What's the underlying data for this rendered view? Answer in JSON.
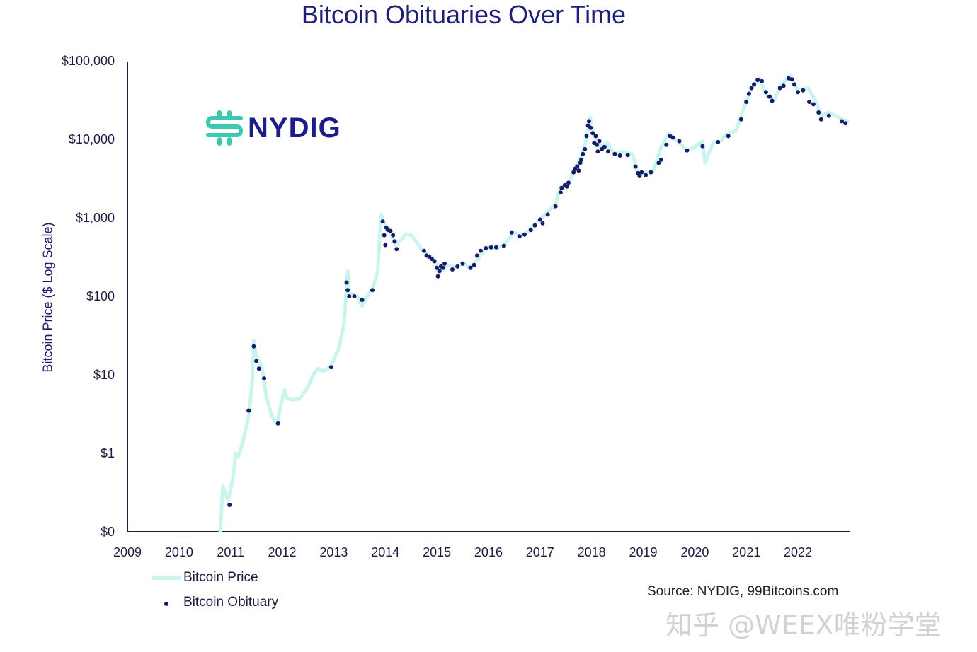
{
  "chart_data": {
    "type": "line+scatter",
    "title": "Bitcoin Obituaries Over Time",
    "xlabel": "",
    "ylabel": "Bitcoin Price ($ Log Scale)",
    "yscale": "log",
    "ylim": [
      0.1,
      100000
    ],
    "xlim": [
      2009,
      2023
    ],
    "y_ticks": [
      {
        "value": 0.1,
        "label": "$0"
      },
      {
        "value": 1,
        "label": "$1"
      },
      {
        "value": 10,
        "label": "$10"
      },
      {
        "value": 100,
        "label": "$100"
      },
      {
        "value": 1000,
        "label": "$1,000"
      },
      {
        "value": 10000,
        "label": "$10,000"
      },
      {
        "value": 100000,
        "label": "$100,000"
      }
    ],
    "x_ticks": [
      "2009",
      "2010",
      "2011",
      "2012",
      "2013",
      "2014",
      "2015",
      "2016",
      "2017",
      "2018",
      "2019",
      "2020",
      "2021",
      "2022"
    ],
    "grid": false,
    "legend": {
      "placement": "bottom-left",
      "entries": [
        "Bitcoin Price",
        "Bitcoin Obituary"
      ]
    },
    "colors": {
      "price": "#c9f5ef",
      "obituary": "#1a1a6b",
      "title": "#1f1f78"
    },
    "series": [
      {
        "name": "Bitcoin Price",
        "type": "line",
        "points": [
          [
            2010.8,
            0.1
          ],
          [
            2010.85,
            0.38
          ],
          [
            2010.95,
            0.25
          ],
          [
            2011.05,
            0.5
          ],
          [
            2011.1,
            1
          ],
          [
            2011.15,
            0.9
          ],
          [
            2011.25,
            1.5
          ],
          [
            2011.35,
            3
          ],
          [
            2011.42,
            8
          ],
          [
            2011.45,
            27
          ],
          [
            2011.5,
            17
          ],
          [
            2011.6,
            13
          ],
          [
            2011.7,
            5
          ],
          [
            2011.8,
            3
          ],
          [
            2011.9,
            2.3
          ],
          [
            2011.97,
            4
          ],
          [
            2012.05,
            6.5
          ],
          [
            2012.1,
            5
          ],
          [
            2012.2,
            4.8
          ],
          [
            2012.35,
            5
          ],
          [
            2012.5,
            7
          ],
          [
            2012.6,
            10
          ],
          [
            2012.7,
            12
          ],
          [
            2012.8,
            11
          ],
          [
            2012.95,
            13
          ],
          [
            2013.1,
            22
          ],
          [
            2013.2,
            45
          ],
          [
            2013.27,
            210
          ],
          [
            2013.3,
            110
          ],
          [
            2013.45,
            100
          ],
          [
            2013.55,
            75
          ],
          [
            2013.65,
            100
          ],
          [
            2013.75,
            125
          ],
          [
            2013.85,
            200
          ],
          [
            2013.92,
            1100
          ],
          [
            2014.0,
            800
          ],
          [
            2014.1,
            650
          ],
          [
            2014.2,
            450
          ],
          [
            2014.3,
            520
          ],
          [
            2014.4,
            620
          ],
          [
            2014.5,
            600
          ],
          [
            2014.6,
            500
          ],
          [
            2014.7,
            400
          ],
          [
            2014.8,
            350
          ],
          [
            2014.95,
            300
          ],
          [
            2015.05,
            200
          ],
          [
            2015.2,
            250
          ],
          [
            2015.4,
            230
          ],
          [
            2015.5,
            270
          ],
          [
            2015.65,
            230
          ],
          [
            2015.8,
            300
          ],
          [
            2015.95,
            420
          ],
          [
            2016.1,
            400
          ],
          [
            2016.3,
            450
          ],
          [
            2016.5,
            650
          ],
          [
            2016.6,
            600
          ],
          [
            2016.75,
            650
          ],
          [
            2016.95,
            900
          ],
          [
            2017.1,
            1100
          ],
          [
            2017.3,
            1500
          ],
          [
            2017.4,
            2500
          ],
          [
            2017.55,
            2600
          ],
          [
            2017.65,
            4000
          ],
          [
            2017.8,
            6000
          ],
          [
            2017.9,
            10000
          ],
          [
            2017.97,
            19000
          ],
          [
            2018.05,
            11000
          ],
          [
            2018.15,
            8000
          ],
          [
            2018.3,
            9000
          ],
          [
            2018.45,
            6500
          ],
          [
            2018.6,
            7000
          ],
          [
            2018.8,
            6400
          ],
          [
            2018.9,
            3500
          ],
          [
            2019.0,
            3700
          ],
          [
            2019.2,
            4000
          ],
          [
            2019.35,
            8000
          ],
          [
            2019.5,
            12000
          ],
          [
            2019.7,
            9000
          ],
          [
            2019.85,
            7200
          ],
          [
            2020.0,
            8000
          ],
          [
            2020.15,
            9500
          ],
          [
            2020.2,
            5000
          ],
          [
            2020.35,
            9000
          ],
          [
            2020.5,
            9500
          ],
          [
            2020.6,
            11500
          ],
          [
            2020.8,
            13000
          ],
          [
            2020.95,
            25000
          ],
          [
            2021.1,
            45000
          ],
          [
            2021.25,
            60000
          ],
          [
            2021.4,
            35000
          ],
          [
            2021.55,
            32000
          ],
          [
            2021.65,
            47000
          ],
          [
            2021.85,
            65000
          ],
          [
            2022.0,
            42000
          ],
          [
            2022.2,
            45000
          ],
          [
            2022.35,
            30000
          ],
          [
            2022.45,
            20000
          ],
          [
            2022.6,
            22000
          ],
          [
            2022.8,
            19000
          ],
          [
            2022.99,
            16500
          ]
        ]
      },
      {
        "name": "Bitcoin Obituary",
        "type": "scatter",
        "points": [
          [
            2010.98,
            0.22
          ],
          [
            2011.35,
            3.5
          ],
          [
            2011.45,
            23
          ],
          [
            2011.5,
            15
          ],
          [
            2011.55,
            12
          ],
          [
            2011.65,
            9
          ],
          [
            2011.92,
            2.4
          ],
          [
            2012.95,
            12.5
          ],
          [
            2013.25,
            150
          ],
          [
            2013.27,
            120
          ],
          [
            2013.3,
            100
          ],
          [
            2013.4,
            100
          ],
          [
            2013.55,
            90
          ],
          [
            2013.75,
            120
          ],
          [
            2013.95,
            900
          ],
          [
            2013.98,
            600
          ],
          [
            2014.0,
            450
          ],
          [
            2014.02,
            750
          ],
          [
            2014.05,
            700
          ],
          [
            2014.1,
            680
          ],
          [
            2014.15,
            600
          ],
          [
            2014.18,
            500
          ],
          [
            2014.22,
            400
          ],
          [
            2014.75,
            380
          ],
          [
            2014.8,
            330
          ],
          [
            2014.85,
            320
          ],
          [
            2014.9,
            300
          ],
          [
            2014.95,
            280
          ],
          [
            2015.0,
            230
          ],
          [
            2015.02,
            180
          ],
          [
            2015.05,
            210
          ],
          [
            2015.08,
            240
          ],
          [
            2015.12,
            230
          ],
          [
            2015.15,
            260
          ],
          [
            2015.3,
            220
          ],
          [
            2015.4,
            240
          ],
          [
            2015.5,
            260
          ],
          [
            2015.65,
            230
          ],
          [
            2015.72,
            250
          ],
          [
            2015.78,
            330
          ],
          [
            2015.85,
            380
          ],
          [
            2015.95,
            410
          ],
          [
            2016.05,
            420
          ],
          [
            2016.15,
            420
          ],
          [
            2016.3,
            440
          ],
          [
            2016.45,
            650
          ],
          [
            2016.6,
            580
          ],
          [
            2016.7,
            610
          ],
          [
            2016.82,
            700
          ],
          [
            2016.9,
            800
          ],
          [
            2017.0,
            950
          ],
          [
            2017.05,
            850
          ],
          [
            2017.15,
            1100
          ],
          [
            2017.3,
            1400
          ],
          [
            2017.4,
            2100
          ],
          [
            2017.42,
            2400
          ],
          [
            2017.48,
            2600
          ],
          [
            2017.52,
            2500
          ],
          [
            2017.55,
            2800
          ],
          [
            2017.65,
            3800
          ],
          [
            2017.68,
            4200
          ],
          [
            2017.72,
            4500
          ],
          [
            2017.75,
            4000
          ],
          [
            2017.78,
            5000
          ],
          [
            2017.8,
            5500
          ],
          [
            2017.83,
            6500
          ],
          [
            2017.87,
            7500
          ],
          [
            2017.9,
            11000
          ],
          [
            2017.93,
            15000
          ],
          [
            2017.95,
            17000
          ],
          [
            2017.98,
            14000
          ],
          [
            2018.02,
            12000
          ],
          [
            2018.05,
            9000
          ],
          [
            2018.08,
            11000
          ],
          [
            2018.1,
            8500
          ],
          [
            2018.12,
            7000
          ],
          [
            2018.15,
            9500
          ],
          [
            2018.2,
            7500
          ],
          [
            2018.25,
            8000
          ],
          [
            2018.32,
            7000
          ],
          [
            2018.45,
            6500
          ],
          [
            2018.55,
            6200
          ],
          [
            2018.7,
            6300
          ],
          [
            2018.85,
            4500
          ],
          [
            2018.9,
            3700
          ],
          [
            2018.93,
            3400
          ],
          [
            2018.97,
            3800
          ],
          [
            2019.05,
            3500
          ],
          [
            2019.15,
            3800
          ],
          [
            2019.3,
            5000
          ],
          [
            2019.35,
            5500
          ],
          [
            2019.45,
            8500
          ],
          [
            2019.52,
            11000
          ],
          [
            2019.58,
            10500
          ],
          [
            2019.7,
            9500
          ],
          [
            2019.85,
            7200
          ],
          [
            2020.15,
            8200
          ],
          [
            2020.45,
            9200
          ],
          [
            2020.65,
            11000
          ],
          [
            2020.9,
            18000
          ],
          [
            2021.0,
            30000
          ],
          [
            2021.05,
            38000
          ],
          [
            2021.1,
            45000
          ],
          [
            2021.15,
            50000
          ],
          [
            2021.22,
            57000
          ],
          [
            2021.3,
            55000
          ],
          [
            2021.38,
            40000
          ],
          [
            2021.45,
            35000
          ],
          [
            2021.5,
            31000
          ],
          [
            2021.65,
            45000
          ],
          [
            2021.72,
            48000
          ],
          [
            2021.82,
            60000
          ],
          [
            2021.88,
            58000
          ],
          [
            2021.93,
            50000
          ],
          [
            2022.0,
            40000
          ],
          [
            2022.1,
            42000
          ],
          [
            2022.22,
            30000
          ],
          [
            2022.3,
            28000
          ],
          [
            2022.4,
            22000
          ],
          [
            2022.45,
            18000
          ],
          [
            2022.6,
            20000
          ],
          [
            2022.85,
            17000
          ],
          [
            2022.92,
            16000
          ]
        ]
      }
    ],
    "annotations": {
      "logo": "NYDIG",
      "source": "Source: NYDIG, 99Bitcoins.com",
      "watermark": "知乎 @WEEX唯粉学堂"
    }
  }
}
